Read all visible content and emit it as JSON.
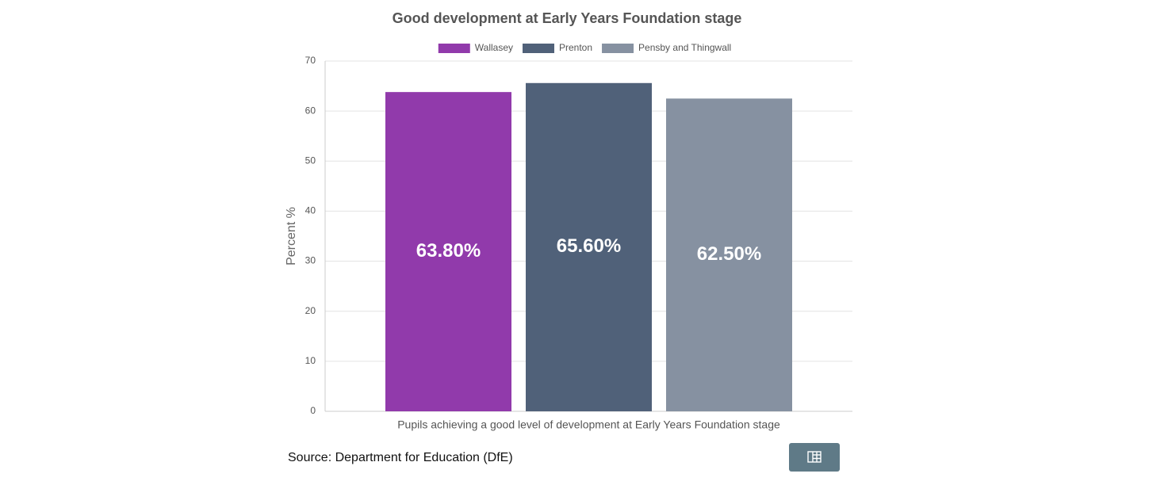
{
  "chart_data": {
    "type": "bar",
    "title": "Good development at Early Years Foundation stage",
    "categories": [
      "Pupils achieving a good level of development at Early Years Foundation stage"
    ],
    "series": [
      {
        "name": "Wallasey",
        "color": "#913aab",
        "values": [
          63.8
        ],
        "value_labels": [
          "63.80%"
        ]
      },
      {
        "name": "Prenton",
        "color": "#506179",
        "values": [
          65.6
        ],
        "value_labels": [
          "65.60%"
        ]
      },
      {
        "name": "Pensby and Thingwall",
        "color": "#8691a1",
        "values": [
          62.5
        ],
        "value_labels": [
          "62.50%"
        ]
      }
    ],
    "y_label": "Percent %",
    "ylim": [
      0,
      70
    ],
    "yticks": [
      0,
      10,
      20,
      30,
      40,
      50,
      60,
      70
    ],
    "grid": true,
    "legend": "top"
  },
  "footer": {
    "source": "Source: Department for Education (DfE)"
  }
}
